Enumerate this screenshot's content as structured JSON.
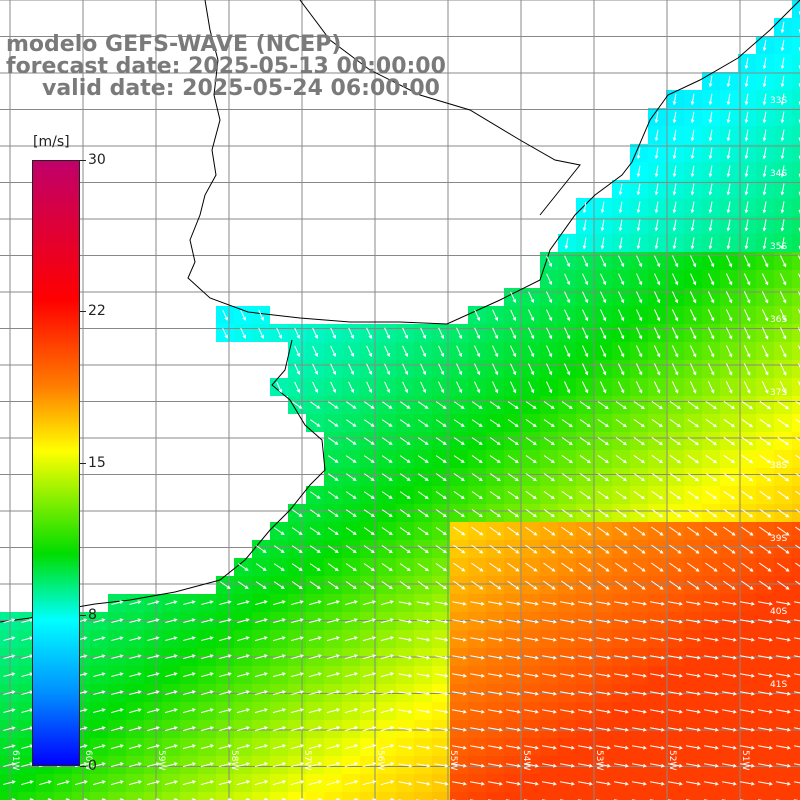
{
  "title": {
    "line1": "modelo GEFS-WAVE (NCEP)",
    "line2": "forecast date: 2025-05-13 00:00:00",
    "line3": "valid date: 2025-05-24 06:00:00"
  },
  "colorbar": {
    "units": "[m/s]",
    "ticks": [
      "30",
      "22",
      "15",
      "8",
      "0"
    ],
    "colors": [
      "#c0006a",
      "#ff0000",
      "#ff7a00",
      "#ffff00",
      "#00dd00",
      "#00ffff",
      "#0090ff",
      "#0000ff"
    ]
  },
  "lat_labels": [
    "33S",
    "34S",
    "35S",
    "36S",
    "37S",
    "38S",
    "39S",
    "40S",
    "41S"
  ],
  "lon_labels": [
    "61W",
    "60W",
    "59W",
    "58W",
    "57W",
    "56W",
    "55W",
    "54W",
    "53W",
    "52W",
    "51W"
  ],
  "colors": {
    "land": "#ffffff",
    "grid": "#888888",
    "coast": "#000000",
    "arrow": "#ffffff"
  }
}
